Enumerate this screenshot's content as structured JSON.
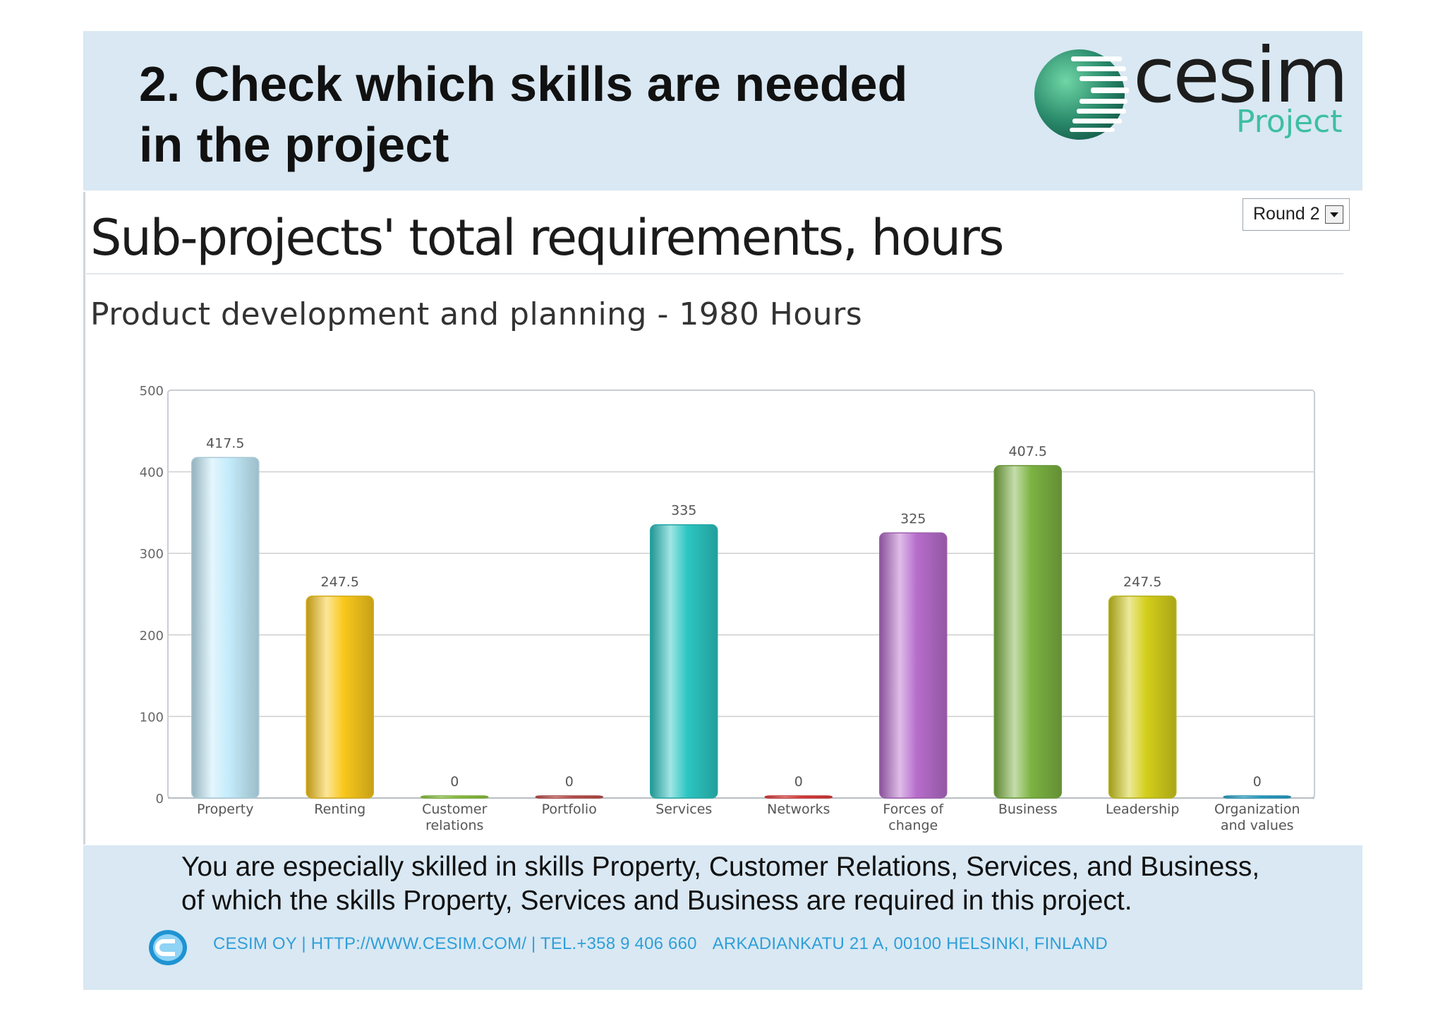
{
  "slide": {
    "title_line1": "2. Check which skills are needed",
    "title_line2": "in the project",
    "logo": {
      "word": "cesim",
      "sub": "Project"
    },
    "panel_title": "Sub-projects' total requirements, hours",
    "round_select": {
      "value": "Round 2"
    },
    "footer_text_line1": "You are especially skilled in skills Property, Customer Relations, Services, and Business,",
    "footer_text_line2": "of which the skills Property, Services and Business are required in this project.",
    "contact": "CESIM OY | HTTP://WWW.CESIM.COM/ | TEL.+358 9 406 660",
    "address": "ARKADIANKATU 21 A, 00100 HELSINKI, FINLAND"
  },
  "chart_data": {
    "type": "bar",
    "title": "Product development and planning - 1980 Hours",
    "categories": [
      [
        "Property"
      ],
      [
        "Renting"
      ],
      [
        "Customer",
        "relations"
      ],
      [
        "Portfolio"
      ],
      [
        "Services"
      ],
      [
        "Networks"
      ],
      [
        "Forces of",
        "change"
      ],
      [
        "Business"
      ],
      [
        "Leadership"
      ],
      [
        "Organization",
        "and values"
      ]
    ],
    "values": [
      417.5,
      247.5,
      0,
      0,
      335,
      0,
      325,
      407.5,
      247.5,
      0
    ],
    "value_labels": [
      "417.5",
      "247.5",
      "0",
      "0",
      "335",
      "0",
      "325",
      "407.5",
      "247.5",
      "0"
    ],
    "colors": [
      "#c4ecfb",
      "#f9c81d",
      "#8dc63f",
      "#c0504d",
      "#2cc6c2",
      "#e03c3c",
      "#b76dcc",
      "#7cb342",
      "#d4cf1c",
      "#29a3c9"
    ],
    "ylim": [
      0,
      500
    ],
    "yticks": [
      0,
      100,
      200,
      300,
      400,
      500
    ],
    "grid": true,
    "legend": "none"
  }
}
